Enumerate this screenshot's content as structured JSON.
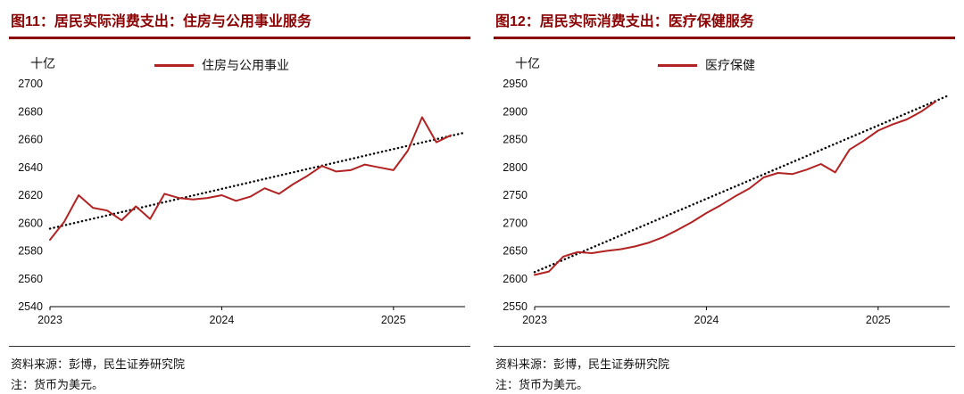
{
  "accent_color": "#8B0000",
  "line_color": "#B22222",
  "chart_data": [
    {
      "type": "line",
      "title": "图11：居民实际消费支出：住房与公用事业服务",
      "ylabel": "十亿",
      "ylim": [
        2540,
        2700
      ],
      "ytick_step": 20,
      "xticks": [
        "2023",
        "2024",
        "2025"
      ],
      "xtick_pos": [
        0,
        12,
        24
      ],
      "x_unit": "month",
      "legend_label": "住房与公用事业",
      "grid": false,
      "legend_position": "top-center",
      "series": [
        {
          "name": "住房与公用事业",
          "color": "#B22222",
          "values": [
            2588,
            2601,
            2620,
            2611,
            2609,
            2602,
            2612,
            2603,
            2621,
            2618,
            2617,
            2618,
            2620,
            2616,
            2619,
            2625,
            2621,
            2628,
            2634,
            2641,
            2637,
            2638,
            2642,
            2640,
            2638,
            2652,
            2676,
            2658,
            2663
          ]
        }
      ],
      "trend": {
        "style": "dotted",
        "color": "#000000",
        "start": 2596,
        "end": 2665
      },
      "source": "资料来源：彭博，民生证券研究院",
      "note": "注：货币为美元。"
    },
    {
      "type": "line",
      "title": "图12：居民实际消费支出：医疗保健服务",
      "ylabel": "十亿",
      "ylim": [
        2550,
        2950
      ],
      "ytick_step": 50,
      "xticks": [
        "2023",
        "2024",
        "2025"
      ],
      "xtick_pos": [
        0,
        12,
        24
      ],
      "x_unit": "month",
      "legend_label": "医疗保健",
      "grid": false,
      "legend_position": "top-center",
      "series": [
        {
          "name": "医疗保健",
          "color": "#B22222",
          "values": [
            2607,
            2613,
            2640,
            2648,
            2646,
            2650,
            2653,
            2658,
            2665,
            2675,
            2688,
            2702,
            2718,
            2732,
            2748,
            2762,
            2782,
            2790,
            2788,
            2796,
            2806,
            2791,
            2832,
            2848,
            2866,
            2877,
            2886,
            2900,
            2918
          ]
        }
      ],
      "trend": {
        "style": "dotted",
        "color": "#000000",
        "start": 2612,
        "end": 2930
      },
      "source": "资料来源：彭博，民生证券研究院",
      "note": "注：货币为美元。"
    }
  ]
}
